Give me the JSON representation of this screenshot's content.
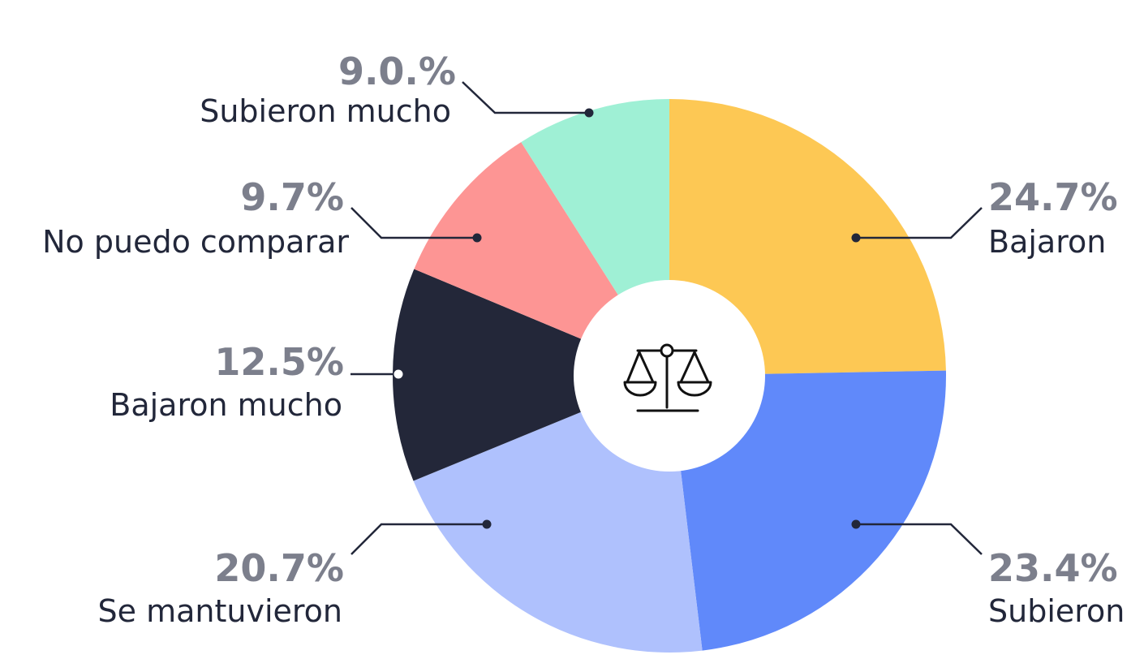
{
  "chart_data": {
    "type": "pie",
    "center_icon": "balance-scale-icon",
    "slices": [
      {
        "label": "Bajaron",
        "value": 24.7,
        "value_label": "24.7%",
        "color": "#fdc854"
      },
      {
        "label": "Subieron",
        "value": 23.4,
        "value_label": "23.4%",
        "color": "#6089fa"
      },
      {
        "label": "Se mantuvieron",
        "value": 20.7,
        "value_label": "20.7%",
        "color": "#afc1fd"
      },
      {
        "label": "Bajaron mucho",
        "value": 12.5,
        "value_label": "12.5%",
        "color": "#232739"
      },
      {
        "label": "No puedo comparar",
        "value": 9.7,
        "value_label": "9.7%",
        "color": "#fd9594"
      },
      {
        "label": "Subieron mucho",
        "value": 9.0,
        "value_label": "9.0.%",
        "color": "#9ff0d5"
      }
    ]
  }
}
